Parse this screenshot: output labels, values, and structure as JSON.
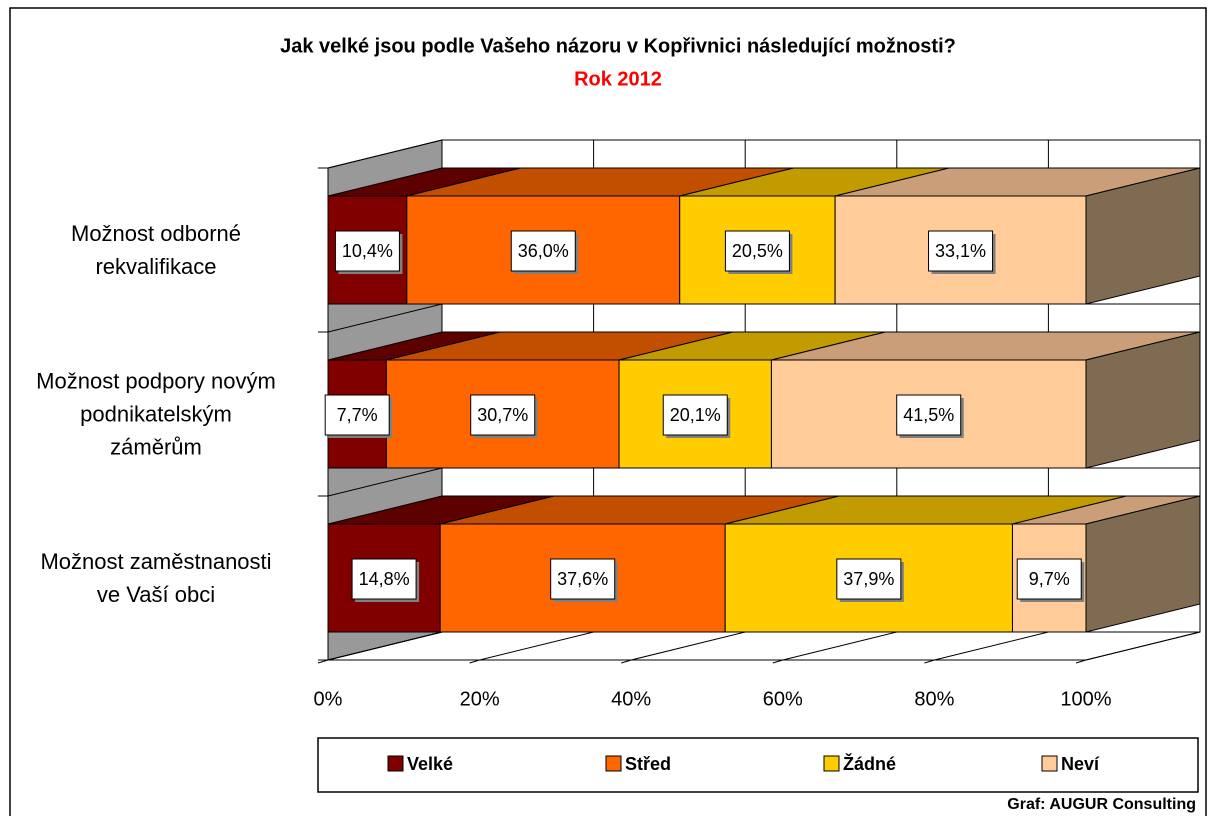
{
  "chart_data": {
    "type": "bar3d_stacked_horizontal",
    "title": "Jak velké jsou podle Vašeho názoru v Kopřivnici následující možnosti?",
    "subtitle": "Rok 2012",
    "source": "Graf: AUGUR Consulting",
    "categories": [
      "Možnost odborné\nrekvalifikace",
      "Možnost podpory novým\npodnikatelským\nzáměrům",
      "Možnost zaměstnanosti\nve Vaší obci"
    ],
    "series": [
      {
        "name": "Velké",
        "color": "#800000",
        "top_color": "#5c0000",
        "values": [
          10.4,
          7.7,
          14.8
        ],
        "value_labels": [
          "10,4%",
          "7,7%",
          "14,8%"
        ]
      },
      {
        "name": "Střed",
        "color": "#ff6600",
        "top_color": "#c24e00",
        "values": [
          36.0,
          30.7,
          37.6
        ],
        "value_labels": [
          "36,0%",
          "30,7%",
          "37,6%"
        ]
      },
      {
        "name": "Žádné",
        "color": "#ffcc00",
        "top_color": "#c29b00",
        "values": [
          20.5,
          20.1,
          37.9
        ],
        "value_labels": [
          "20,5%",
          "20,1%",
          "37,9%"
        ]
      },
      {
        "name": "Neví",
        "color": "#ffcc99",
        "top_color": "#c99e78",
        "values": [
          33.1,
          41.5,
          9.7
        ],
        "value_labels": [
          "33,1%",
          "41,5%",
          "9,7%"
        ]
      }
    ],
    "xlim": [
      0,
      100
    ],
    "xticks": [
      {
        "value": 0,
        "label": "0%"
      },
      {
        "value": 20,
        "label": "20%"
      },
      {
        "value": 40,
        "label": "40%"
      },
      {
        "value": 60,
        "label": "60%"
      },
      {
        "value": 80,
        "label": "80%"
      },
      {
        "value": 100,
        "label": "100%"
      }
    ],
    "grid": true,
    "legend": "bottom"
  }
}
